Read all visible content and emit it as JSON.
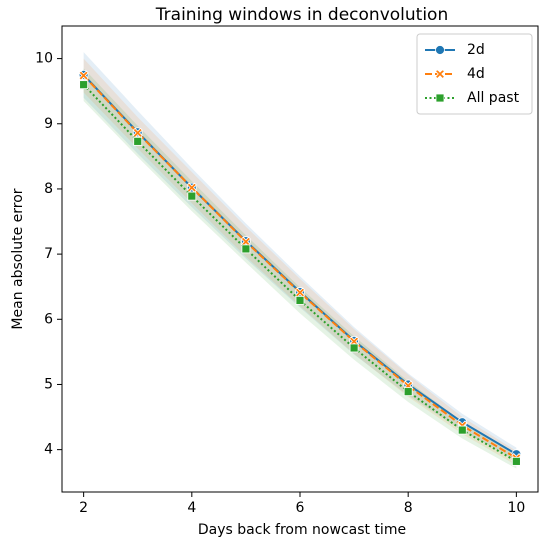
{
  "chart_data": {
    "type": "line",
    "title": "Training windows in deconvolution",
    "x_label": "Days back from nowcast time",
    "y_label": "Mean absolute error",
    "x": [
      2,
      3,
      4,
      5,
      6,
      7,
      8,
      9,
      10
    ],
    "series": [
      {
        "name": "2d",
        "color": "#1f77b4",
        "dash": "solid",
        "marker": "circle",
        "values": [
          9.75,
          8.87,
          8.02,
          7.2,
          6.42,
          5.67,
          5.0,
          4.42,
          3.93
        ],
        "upper": [
          10.1,
          9.2,
          8.32,
          7.47,
          6.66,
          5.88,
          5.17,
          4.55,
          4.03
        ],
        "lower": [
          9.4,
          8.54,
          7.72,
          6.93,
          6.18,
          5.46,
          4.83,
          4.29,
          3.83
        ]
      },
      {
        "name": "4d",
        "color": "#ff7f0e",
        "dash": "dashed",
        "marker": "x",
        "values": [
          9.74,
          8.86,
          8.02,
          7.19,
          6.41,
          5.66,
          4.98,
          4.37,
          3.87
        ],
        "upper": [
          10.0,
          9.1,
          8.26,
          7.42,
          6.62,
          5.85,
          5.15,
          4.5,
          3.98
        ],
        "lower": [
          9.48,
          8.62,
          7.78,
          6.96,
          6.2,
          5.47,
          4.81,
          4.24,
          3.76
        ]
      },
      {
        "name": "All past",
        "color": "#2ca02c",
        "dash": "dotted",
        "marker": "square",
        "values": [
          9.6,
          8.73,
          7.89,
          7.08,
          6.29,
          5.56,
          4.89,
          4.3,
          3.82
        ],
        "upper": [
          9.85,
          8.97,
          8.12,
          7.29,
          6.49,
          5.74,
          5.05,
          4.43,
          3.93
        ],
        "lower": [
          9.35,
          8.49,
          7.66,
          6.87,
          6.09,
          5.38,
          4.73,
          4.17,
          3.71
        ]
      }
    ],
    "xlim": [
      1.6,
      10.4
    ],
    "xticks": [
      2,
      4,
      6,
      8,
      10
    ],
    "ylim": [
      3.35,
      10.5
    ],
    "yticks": [
      4,
      5,
      6,
      7,
      8,
      9,
      10
    ],
    "legend": "upper right",
    "grid": false
  }
}
